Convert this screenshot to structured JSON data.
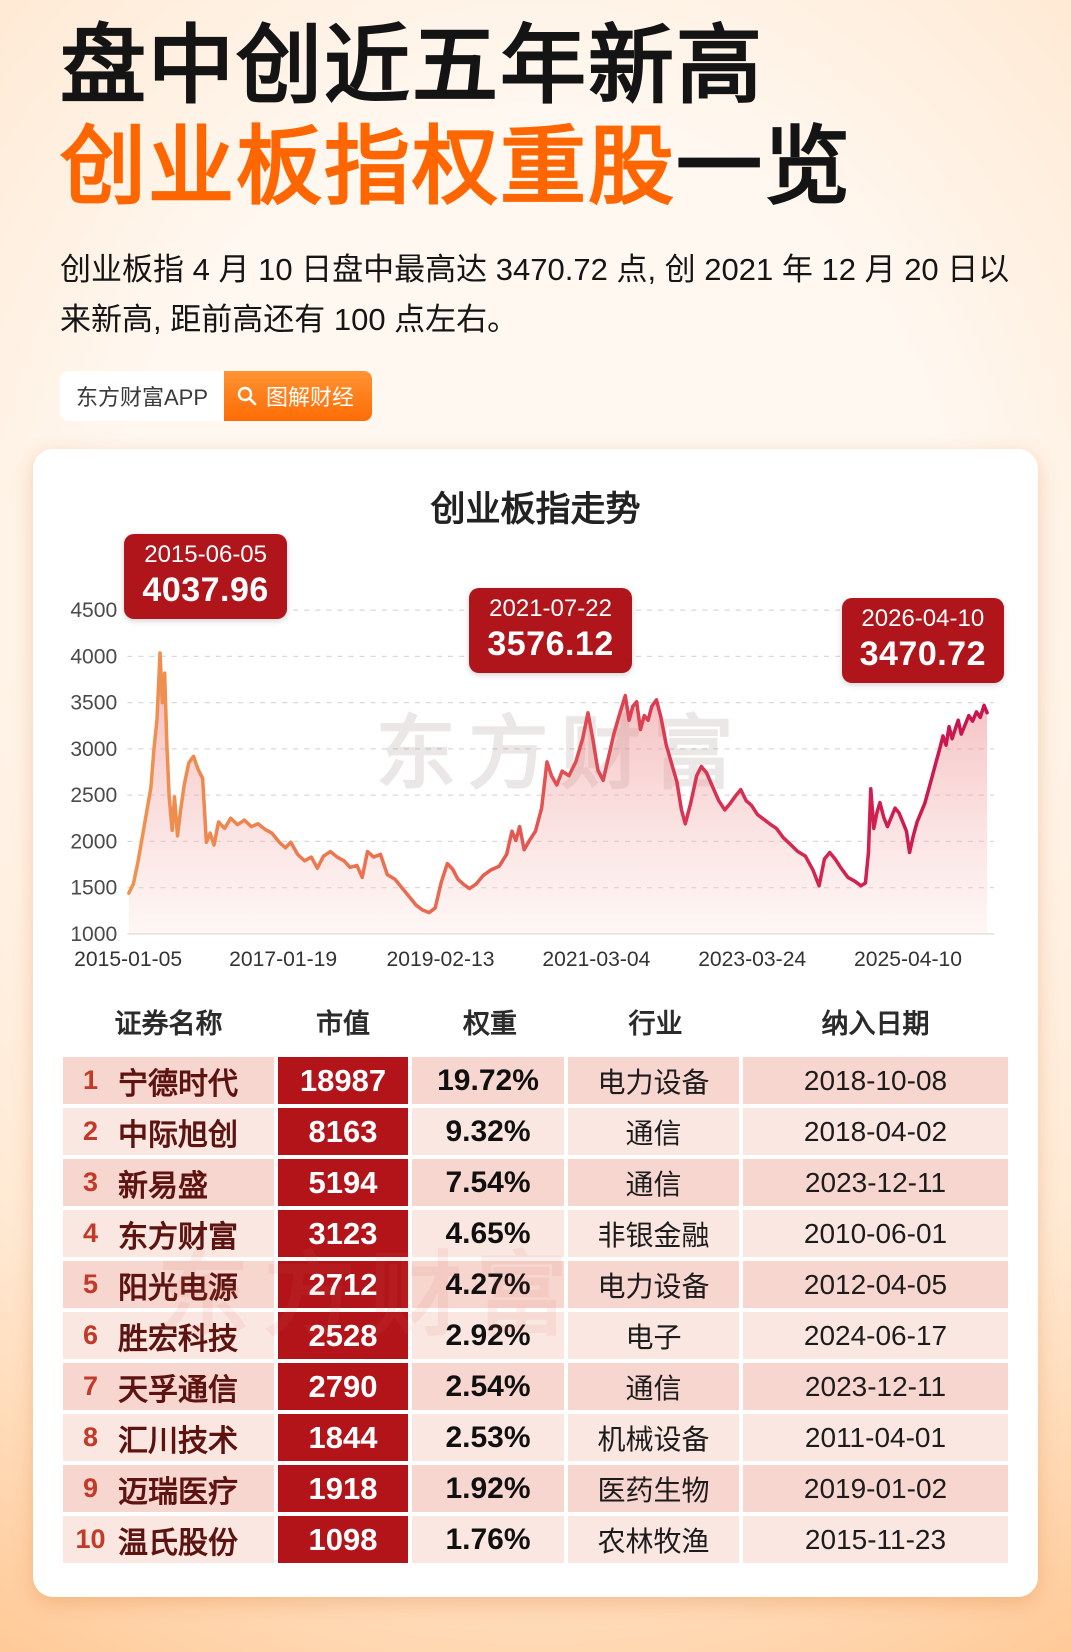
{
  "header": {
    "title_line1": "盘中创近五年新高",
    "title_line2_orange": "创业板指权重股",
    "title_line2_black": "一览",
    "subtitle": "创业板指 4 月 10 日盘中最高达 3470.72 点, 创 2021 年 12 月 20 日以来新高, 距前高还有 100 点左右。",
    "badge_left": "东方财富APP",
    "badge_right": "图解财经"
  },
  "chart_data": {
    "type": "area",
    "title": "创业板指走势",
    "watermark": "东方财富",
    "legend_position": "none",
    "grid": true,
    "ylim": [
      1000,
      4500
    ],
    "xlim": [
      2015.0,
      2026.4
    ],
    "y_ticks": [
      4500,
      4000,
      3500,
      3000,
      2500,
      2000,
      1500,
      1000
    ],
    "x_ticks": [
      {
        "label": "2015-01-05",
        "x": 2015.01
      },
      {
        "label": "2017-01-19",
        "x": 2017.05
      },
      {
        "label": "2019-02-13",
        "x": 2019.12
      },
      {
        "label": "2021-03-04",
        "x": 2021.17
      },
      {
        "label": "2023-03-24",
        "x": 2023.22
      },
      {
        "label": "2025-04-10",
        "x": 2025.27
      }
    ],
    "annotations": [
      {
        "date": "2015-06-05",
        "value": "4037.96"
      },
      {
        "date": "2021-07-22",
        "value": "3576.12"
      },
      {
        "date": "2026-04-10",
        "value": "3470.72"
      }
    ],
    "colors": {
      "line_gradient": [
        "#f0934e",
        "#e96a50",
        "#d93553",
        "#c9134e"
      ],
      "fill_top": "rgba(230,90,95,0.45)",
      "fill_bottom": "rgba(252,228,222,0.30)",
      "annotation_bg": "#b0151c"
    },
    "series": [
      {
        "name": "创业板指",
        "points": [
          [
            2015.02,
            1440
          ],
          [
            2015.08,
            1540
          ],
          [
            2015.14,
            1780
          ],
          [
            2015.2,
            2060
          ],
          [
            2015.26,
            2350
          ],
          [
            2015.31,
            2580
          ],
          [
            2015.35,
            3000
          ],
          [
            2015.39,
            3320
          ],
          [
            2015.43,
            4037
          ],
          [
            2015.46,
            3500
          ],
          [
            2015.49,
            3820
          ],
          [
            2015.52,
            3050
          ],
          [
            2015.55,
            2480
          ],
          [
            2015.59,
            2120
          ],
          [
            2015.62,
            2480
          ],
          [
            2015.66,
            2060
          ],
          [
            2015.7,
            2330
          ],
          [
            2015.75,
            2620
          ],
          [
            2015.81,
            2850
          ],
          [
            2015.87,
            2920
          ],
          [
            2015.93,
            2780
          ],
          [
            2015.99,
            2680
          ],
          [
            2016.04,
            1990
          ],
          [
            2016.09,
            2090
          ],
          [
            2016.14,
            1960
          ],
          [
            2016.2,
            2210
          ],
          [
            2016.28,
            2140
          ],
          [
            2016.36,
            2250
          ],
          [
            2016.45,
            2180
          ],
          [
            2016.54,
            2230
          ],
          [
            2016.63,
            2160
          ],
          [
            2016.72,
            2190
          ],
          [
            2016.81,
            2130
          ],
          [
            2016.9,
            2090
          ],
          [
            2017.0,
            1990
          ],
          [
            2017.08,
            1930
          ],
          [
            2017.15,
            1990
          ],
          [
            2017.24,
            1860
          ],
          [
            2017.33,
            1790
          ],
          [
            2017.42,
            1830
          ],
          [
            2017.5,
            1710
          ],
          [
            2017.58,
            1840
          ],
          [
            2017.67,
            1890
          ],
          [
            2017.76,
            1830
          ],
          [
            2017.85,
            1790
          ],
          [
            2017.93,
            1720
          ],
          [
            2018.02,
            1740
          ],
          [
            2018.09,
            1610
          ],
          [
            2018.16,
            1890
          ],
          [
            2018.24,
            1830
          ],
          [
            2018.33,
            1860
          ],
          [
            2018.42,
            1640
          ],
          [
            2018.52,
            1590
          ],
          [
            2018.62,
            1490
          ],
          [
            2018.72,
            1390
          ],
          [
            2018.8,
            1310
          ],
          [
            2018.88,
            1260
          ],
          [
            2018.97,
            1230
          ],
          [
            2019.05,
            1280
          ],
          [
            2019.13,
            1560
          ],
          [
            2019.21,
            1760
          ],
          [
            2019.28,
            1700
          ],
          [
            2019.35,
            1590
          ],
          [
            2019.43,
            1530
          ],
          [
            2019.5,
            1490
          ],
          [
            2019.59,
            1540
          ],
          [
            2019.68,
            1630
          ],
          [
            2019.78,
            1690
          ],
          [
            2019.89,
            1730
          ],
          [
            2019.99,
            1860
          ],
          [
            2020.06,
            2110
          ],
          [
            2020.11,
            2010
          ],
          [
            2020.16,
            2160
          ],
          [
            2020.22,
            1910
          ],
          [
            2020.29,
            2010
          ],
          [
            2020.37,
            2110
          ],
          [
            2020.45,
            2360
          ],
          [
            2020.52,
            2860
          ],
          [
            2020.58,
            2710
          ],
          [
            2020.65,
            2610
          ],
          [
            2020.72,
            2760
          ],
          [
            2020.81,
            2710
          ],
          [
            2020.9,
            2860
          ],
          [
            2020.99,
            3110
          ],
          [
            2021.06,
            3390
          ],
          [
            2021.12,
            3120
          ],
          [
            2021.19,
            2770
          ],
          [
            2021.26,
            2660
          ],
          [
            2021.33,
            2910
          ],
          [
            2021.4,
            3160
          ],
          [
            2021.47,
            3360
          ],
          [
            2021.55,
            3576
          ],
          [
            2021.6,
            3310
          ],
          [
            2021.65,
            3460
          ],
          [
            2021.7,
            3510
          ],
          [
            2021.75,
            3210
          ],
          [
            2021.8,
            3360
          ],
          [
            2021.85,
            3310
          ],
          [
            2021.9,
            3460
          ],
          [
            2021.96,
            3530
          ],
          [
            2022.02,
            3340
          ],
          [
            2022.09,
            3040
          ],
          [
            2022.16,
            2840
          ],
          [
            2022.23,
            2640
          ],
          [
            2022.29,
            2340
          ],
          [
            2022.34,
            2190
          ],
          [
            2022.41,
            2410
          ],
          [
            2022.49,
            2710
          ],
          [
            2022.55,
            2810
          ],
          [
            2022.62,
            2740
          ],
          [
            2022.7,
            2590
          ],
          [
            2022.78,
            2440
          ],
          [
            2022.86,
            2340
          ],
          [
            2022.93,
            2410
          ],
          [
            2023.0,
            2490
          ],
          [
            2023.07,
            2560
          ],
          [
            2023.14,
            2440
          ],
          [
            2023.21,
            2390
          ],
          [
            2023.29,
            2290
          ],
          [
            2023.37,
            2240
          ],
          [
            2023.45,
            2190
          ],
          [
            2023.54,
            2140
          ],
          [
            2023.63,
            2040
          ],
          [
            2023.72,
            1970
          ],
          [
            2023.82,
            1890
          ],
          [
            2023.92,
            1840
          ],
          [
            2024.02,
            1690
          ],
          [
            2024.1,
            1520
          ],
          [
            2024.17,
            1810
          ],
          [
            2024.24,
            1880
          ],
          [
            2024.31,
            1810
          ],
          [
            2024.39,
            1710
          ],
          [
            2024.48,
            1610
          ],
          [
            2024.57,
            1570
          ],
          [
            2024.65,
            1520
          ],
          [
            2024.71,
            1550
          ],
          [
            2024.75,
            1880
          ],
          [
            2024.78,
            2570
          ],
          [
            2024.82,
            2140
          ],
          [
            2024.86,
            2310
          ],
          [
            2024.9,
            2420
          ],
          [
            2024.95,
            2260
          ],
          [
            2025.0,
            2160
          ],
          [
            2025.05,
            2260
          ],
          [
            2025.1,
            2360
          ],
          [
            2025.15,
            2310
          ],
          [
            2025.2,
            2210
          ],
          [
            2025.25,
            2110
          ],
          [
            2025.29,
            1880
          ],
          [
            2025.34,
            2060
          ],
          [
            2025.39,
            2210
          ],
          [
            2025.44,
            2310
          ],
          [
            2025.49,
            2410
          ],
          [
            2025.54,
            2560
          ],
          [
            2025.59,
            2710
          ],
          [
            2025.64,
            2860
          ],
          [
            2025.69,
            3010
          ],
          [
            2025.73,
            3140
          ],
          [
            2025.77,
            3040
          ],
          [
            2025.81,
            3240
          ],
          [
            2025.85,
            3110
          ],
          [
            2025.89,
            3210
          ],
          [
            2025.93,
            3310
          ],
          [
            2025.97,
            3160
          ],
          [
            2026.02,
            3260
          ],
          [
            2026.07,
            3360
          ],
          [
            2026.12,
            3300
          ],
          [
            2026.17,
            3400
          ],
          [
            2026.22,
            3340
          ],
          [
            2026.27,
            3471
          ],
          [
            2026.31,
            3390
          ]
        ]
      }
    ]
  },
  "table": {
    "watermark": "东方财富",
    "headers": [
      "证券名称",
      "市值",
      "权重",
      "行业",
      "纳入日期"
    ],
    "rows": [
      {
        "rank": "1",
        "name": "宁德时代",
        "cap": "18987",
        "weight": "19.72%",
        "industry": "电力设备",
        "date": "2018-10-08"
      },
      {
        "rank": "2",
        "name": "中际旭创",
        "cap": "8163",
        "weight": "9.32%",
        "industry": "通信",
        "date": "2018-04-02"
      },
      {
        "rank": "3",
        "name": "新易盛",
        "cap": "5194",
        "weight": "7.54%",
        "industry": "通信",
        "date": "2023-12-11"
      },
      {
        "rank": "4",
        "name": "东方财富",
        "cap": "3123",
        "weight": "4.65%",
        "industry": "非银金融",
        "date": "2010-06-01"
      },
      {
        "rank": "5",
        "name": "阳光电源",
        "cap": "2712",
        "weight": "4.27%",
        "industry": "电力设备",
        "date": "2012-04-05"
      },
      {
        "rank": "6",
        "name": "胜宏科技",
        "cap": "2528",
        "weight": "2.92%",
        "industry": "电子",
        "date": "2024-06-17"
      },
      {
        "rank": "7",
        "name": "天孚通信",
        "cap": "2790",
        "weight": "2.54%",
        "industry": "通信",
        "date": "2023-12-11"
      },
      {
        "rank": "8",
        "name": "汇川技术",
        "cap": "1844",
        "weight": "2.53%",
        "industry": "机械设备",
        "date": "2011-04-01"
      },
      {
        "rank": "9",
        "name": "迈瑞医疗",
        "cap": "1918",
        "weight": "1.92%",
        "industry": "医药生物",
        "date": "2019-01-02"
      },
      {
        "rank": "10",
        "name": "温氏股份",
        "cap": "1098",
        "weight": "1.76%",
        "industry": "农林牧渔",
        "date": "2015-11-23"
      }
    ]
  }
}
